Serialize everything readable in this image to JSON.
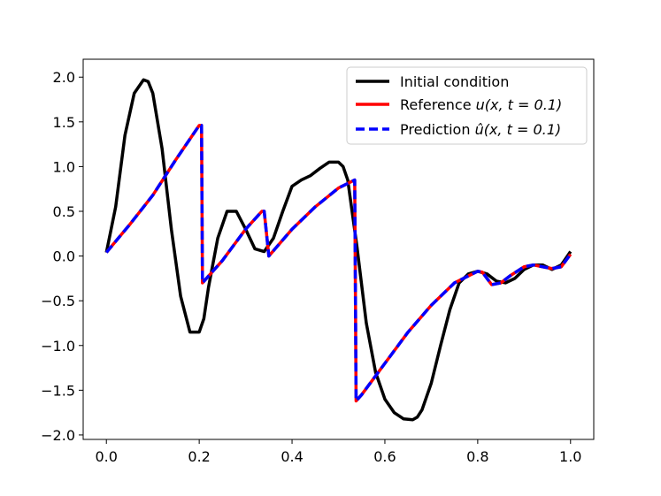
{
  "chart_data": {
    "type": "line",
    "title": "",
    "xlabel": "",
    "ylabel": "",
    "xlim": [
      -0.05,
      1.05
    ],
    "ylim": [
      -2.05,
      2.2
    ],
    "xticks": [
      {
        "value": 0.0,
        "label": "0.0"
      },
      {
        "value": 0.2,
        "label": "0.2"
      },
      {
        "value": 0.4,
        "label": "0.4"
      },
      {
        "value": 0.6,
        "label": "0.6"
      },
      {
        "value": 0.8,
        "label": "0.8"
      },
      {
        "value": 1.0,
        "label": "1.0"
      }
    ],
    "yticks": [
      {
        "value": 2.0,
        "label": "2.0"
      },
      {
        "value": 1.5,
        "label": "1.5"
      },
      {
        "value": 1.0,
        "label": "1.0"
      },
      {
        "value": 0.5,
        "label": "0.5"
      },
      {
        "value": 0.0,
        "label": "0.0"
      },
      {
        "value": -0.5,
        "label": "−0.5"
      },
      {
        "value": -1.0,
        "label": "−1.0"
      },
      {
        "value": -1.5,
        "label": "−1.5"
      },
      {
        "value": -2.0,
        "label": "−2.0"
      }
    ],
    "grid": false,
    "legend_position": "top-right",
    "series": [
      {
        "name": "Initial condition",
        "color": "#000000",
        "style": "solid",
        "x": [
          0.0,
          0.02,
          0.04,
          0.06,
          0.08,
          0.09,
          0.1,
          0.12,
          0.14,
          0.16,
          0.18,
          0.2,
          0.21,
          0.22,
          0.24,
          0.26,
          0.28,
          0.3,
          0.32,
          0.34,
          0.36,
          0.38,
          0.4,
          0.42,
          0.44,
          0.46,
          0.48,
          0.5,
          0.51,
          0.52,
          0.54,
          0.56,
          0.58,
          0.6,
          0.62,
          0.64,
          0.66,
          0.67,
          0.68,
          0.7,
          0.72,
          0.74,
          0.76,
          0.78,
          0.8,
          0.82,
          0.84,
          0.86,
          0.88,
          0.9,
          0.92,
          0.94,
          0.96,
          0.98,
          1.0
        ],
        "y": [
          0.04,
          0.55,
          1.35,
          1.82,
          1.97,
          1.95,
          1.82,
          1.2,
          0.3,
          -0.45,
          -0.85,
          -0.85,
          -0.7,
          -0.35,
          0.2,
          0.5,
          0.5,
          0.3,
          0.08,
          0.05,
          0.2,
          0.5,
          0.78,
          0.85,
          0.9,
          0.98,
          1.05,
          1.05,
          1.0,
          0.85,
          0.1,
          -0.75,
          -1.3,
          -1.6,
          -1.75,
          -1.82,
          -1.83,
          -1.8,
          -1.72,
          -1.42,
          -1.0,
          -0.6,
          -0.3,
          -0.2,
          -0.17,
          -0.2,
          -0.28,
          -0.3,
          -0.25,
          -0.15,
          -0.1,
          -0.1,
          -0.15,
          -0.1,
          0.05
        ]
      },
      {
        "name": "Reference u(x, t = 0.1)",
        "color": "#ff0000",
        "style": "solid",
        "x": [
          0.0,
          0.05,
          0.1,
          0.15,
          0.2,
          0.205,
          0.207,
          0.25,
          0.3,
          0.335,
          0.34,
          0.35,
          0.4,
          0.45,
          0.5,
          0.535,
          0.538,
          0.55,
          0.6,
          0.65,
          0.7,
          0.75,
          0.8,
          0.81,
          0.83,
          0.85,
          0.87,
          0.9,
          0.92,
          0.94,
          0.96,
          0.98,
          1.0
        ],
        "y": [
          0.04,
          0.35,
          0.68,
          1.08,
          1.46,
          1.46,
          -0.3,
          -0.05,
          0.3,
          0.5,
          0.5,
          0.0,
          0.3,
          0.55,
          0.76,
          0.85,
          -1.62,
          -1.55,
          -1.2,
          -0.85,
          -0.55,
          -0.3,
          -0.17,
          -0.18,
          -0.32,
          -0.3,
          -0.22,
          -0.12,
          -0.1,
          -0.12,
          -0.14,
          -0.12,
          0.02
        ]
      },
      {
        "name": "Prediction û(x, t = 0.1)",
        "color": "#0000ff",
        "style": "dashed",
        "x": [
          0.0,
          0.05,
          0.1,
          0.15,
          0.2,
          0.205,
          0.207,
          0.25,
          0.3,
          0.335,
          0.34,
          0.35,
          0.4,
          0.45,
          0.5,
          0.535,
          0.538,
          0.55,
          0.6,
          0.65,
          0.7,
          0.75,
          0.8,
          0.81,
          0.83,
          0.85,
          0.87,
          0.9,
          0.92,
          0.94,
          0.96,
          0.98,
          1.0
        ],
        "y": [
          0.04,
          0.35,
          0.68,
          1.08,
          1.46,
          1.46,
          -0.3,
          -0.05,
          0.3,
          0.5,
          0.5,
          0.0,
          0.3,
          0.55,
          0.76,
          0.85,
          -1.62,
          -1.55,
          -1.2,
          -0.85,
          -0.55,
          -0.3,
          -0.17,
          -0.18,
          -0.32,
          -0.3,
          -0.22,
          -0.12,
          -0.1,
          -0.12,
          -0.14,
          -0.12,
          0.02
        ]
      }
    ],
    "legend": [
      {
        "label_main": "Initial condition",
        "label_math": ""
      },
      {
        "label_main": "Reference ",
        "label_math": "u(x, t = 0.1)"
      },
      {
        "label_main": "Prediction ",
        "label_math": "û(x, t = 0.1)"
      }
    ]
  }
}
